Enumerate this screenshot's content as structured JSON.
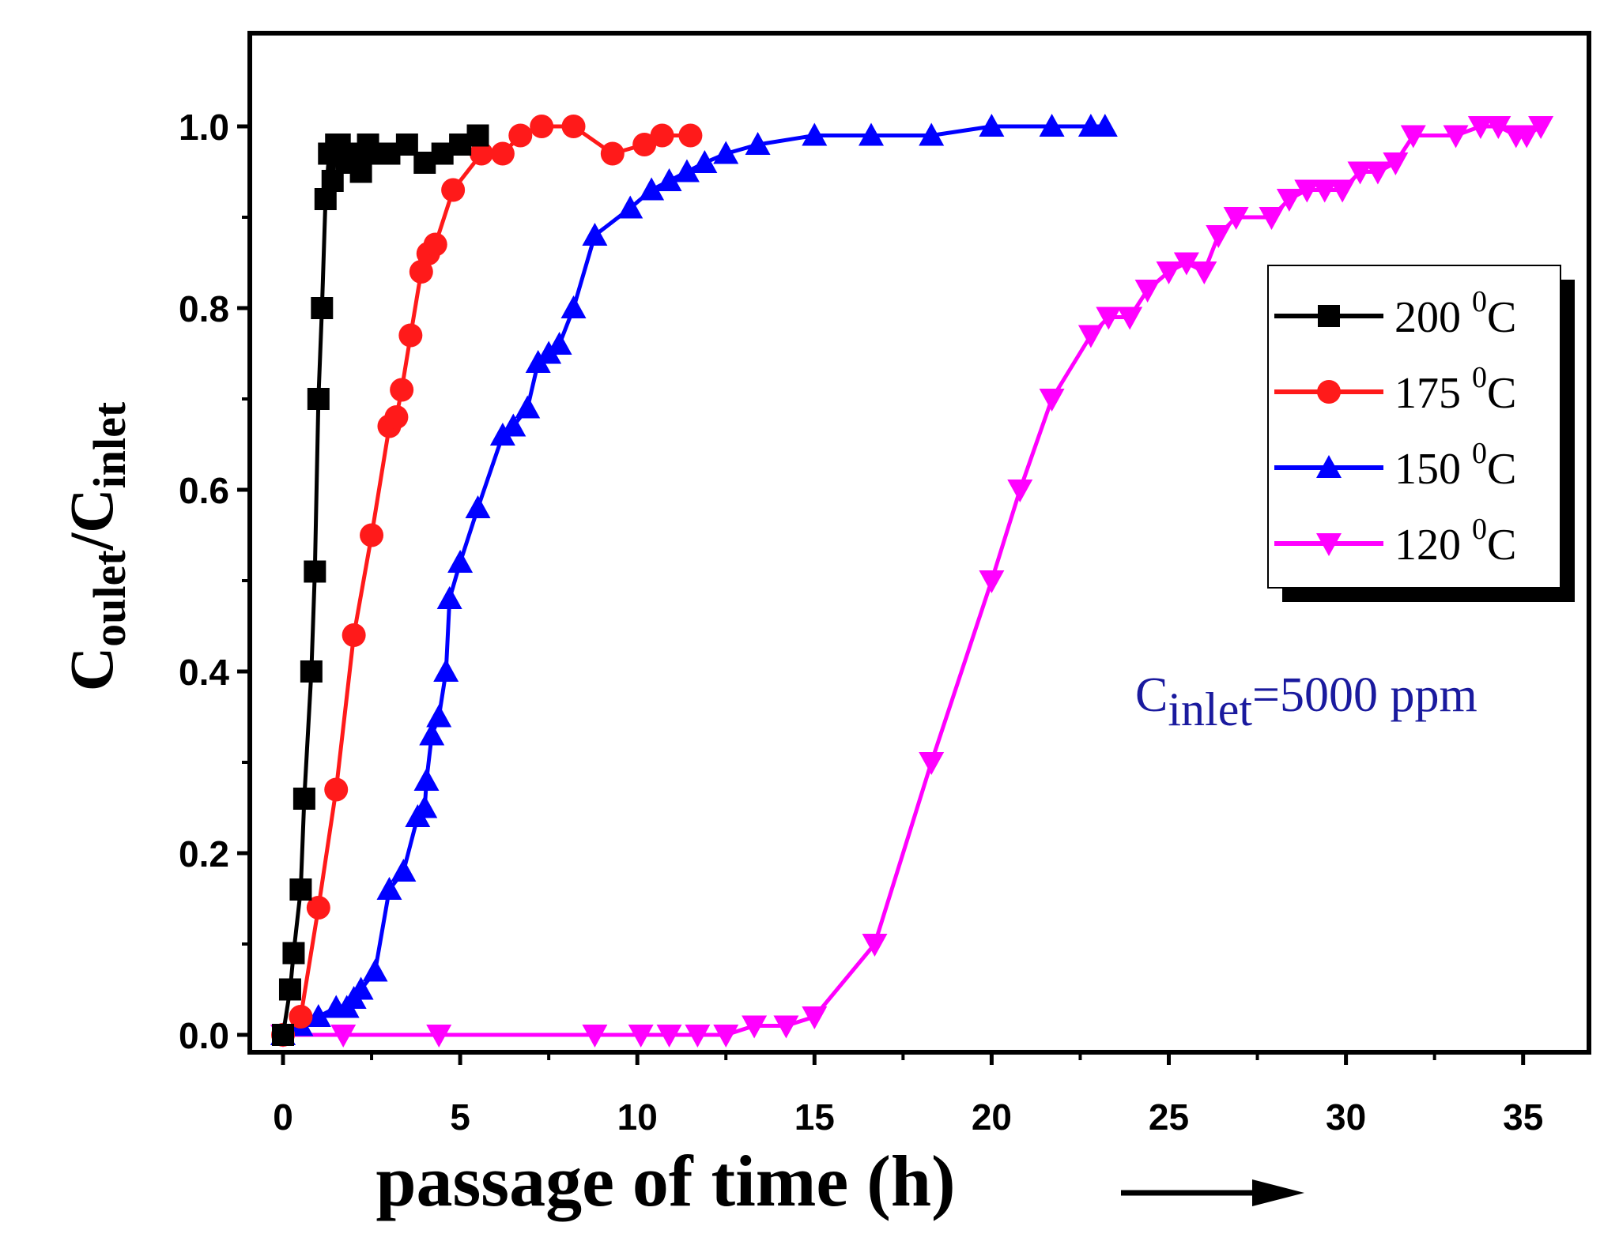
{
  "chart_data": {
    "type": "line",
    "title": "",
    "xlabel": "passage of time (h)",
    "ylabel": {
      "base": "C",
      "sub1": "oulet",
      "slash": "/",
      "base2": "C",
      "sub2": "inlet"
    },
    "xlim": [
      -1,
      37
    ],
    "ylim": [
      -0.025,
      1.1
    ],
    "xticks": [
      "0",
      "5",
      "10",
      "15",
      "20",
      "25",
      "30",
      "35"
    ],
    "yticks": [
      "0.0",
      "0.2",
      "0.4",
      "0.6",
      "0.8",
      "1.0"
    ],
    "annotation": {
      "base": "C",
      "sub": "inlet",
      "rest": "=5000 ppm"
    },
    "legend_position": "right",
    "series": [
      {
        "name": "200 0C",
        "label_num": "200",
        "label_sup": "0",
        "label_unit": "C",
        "color": "#000000",
        "marker": "square",
        "x": [
          0,
          0.2,
          0.3,
          0.5,
          0.6,
          0.8,
          0.9,
          1.0,
          1.1,
          1.2,
          1.3,
          1.4,
          1.5,
          1.6,
          1.8,
          2.0,
          2.2,
          2.4,
          2.6,
          3.0,
          3.5,
          4.0,
          4.5,
          5.0,
          5.5
        ],
        "y": [
          0,
          0.05,
          0.09,
          0.16,
          0.26,
          0.4,
          0.51,
          0.7,
          0.8,
          0.92,
          0.97,
          0.94,
          0.98,
          0.98,
          0.96,
          0.97,
          0.95,
          0.98,
          0.97,
          0.97,
          0.98,
          0.96,
          0.97,
          0.98,
          0.99
        ]
      },
      {
        "name": "175 0C",
        "label_num": "175",
        "label_sup": "0",
        "label_unit": "C",
        "color": "#ff1a1a",
        "marker": "circle",
        "x": [
          0,
          0.5,
          1.0,
          1.5,
          2.0,
          2.5,
          3.0,
          3.2,
          3.35,
          3.6,
          3.9,
          4.1,
          4.3,
          4.8,
          5.6,
          6.2,
          6.7,
          7.3,
          8.2,
          9.3,
          10.2,
          10.7,
          11.5
        ],
        "y": [
          0,
          0.02,
          0.14,
          0.27,
          0.44,
          0.55,
          0.67,
          0.68,
          0.71,
          0.77,
          0.84,
          0.86,
          0.87,
          0.93,
          0.97,
          0.97,
          0.99,
          1.0,
          1.0,
          0.97,
          0.98,
          0.99,
          0.99
        ]
      },
      {
        "name": "150 0C",
        "label_num": "150",
        "label_sup": "0",
        "label_unit": "C",
        "color": "#0000ff",
        "marker": "triangle-up",
        "x": [
          0,
          0.5,
          1.0,
          1.5,
          1.8,
          2.0,
          2.2,
          2.6,
          3.0,
          3.4,
          3.8,
          4.0,
          4.05,
          4.2,
          4.4,
          4.6,
          4.7,
          5.0,
          5.5,
          6.2,
          6.5,
          6.9,
          7.2,
          7.5,
          7.8,
          8.2,
          8.8,
          9.8,
          10.4,
          10.9,
          11.4,
          11.9,
          12.5,
          13.4,
          15.0,
          16.6,
          18.3,
          20.0,
          21.7,
          22.8,
          23.2
        ],
        "y": [
          0,
          0.01,
          0.02,
          0.03,
          0.03,
          0.04,
          0.05,
          0.07,
          0.16,
          0.18,
          0.24,
          0.25,
          0.28,
          0.33,
          0.35,
          0.4,
          0.48,
          0.52,
          0.58,
          0.66,
          0.67,
          0.69,
          0.74,
          0.75,
          0.76,
          0.8,
          0.88,
          0.91,
          0.93,
          0.94,
          0.95,
          0.96,
          0.97,
          0.98,
          0.99,
          0.99,
          0.99,
          1.0,
          1.0,
          1.0,
          1.0
        ]
      },
      {
        "name": "120 0C",
        "label_num": "120",
        "label_sup": "0",
        "label_unit": "C",
        "color": "#ff00ff",
        "marker": "triangle-down",
        "x": [
          0,
          1.7,
          4.4,
          8.8,
          10.1,
          10.9,
          11.7,
          12.5,
          13.3,
          14.2,
          15.0,
          16.7,
          18.3,
          20.0,
          20.8,
          21.7,
          22.8,
          23.3,
          23.9,
          24.4,
          25.0,
          25.5,
          26.0,
          26.4,
          26.9,
          27.9,
          28.4,
          28.9,
          29.4,
          29.9,
          30.4,
          30.9,
          31.4,
          31.9,
          33.1,
          33.8,
          34.3,
          34.8,
          35.1,
          35.5
        ],
        "y": [
          0,
          0,
          0,
          0,
          0,
          0,
          0,
          0,
          0.01,
          0.01,
          0.02,
          0.1,
          0.3,
          0.5,
          0.6,
          0.7,
          0.77,
          0.79,
          0.79,
          0.82,
          0.84,
          0.85,
          0.84,
          0.88,
          0.9,
          0.9,
          0.92,
          0.93,
          0.93,
          0.93,
          0.95,
          0.95,
          0.96,
          0.99,
          0.99,
          1.0,
          1.0,
          0.99,
          0.99,
          1.0
        ]
      }
    ]
  }
}
